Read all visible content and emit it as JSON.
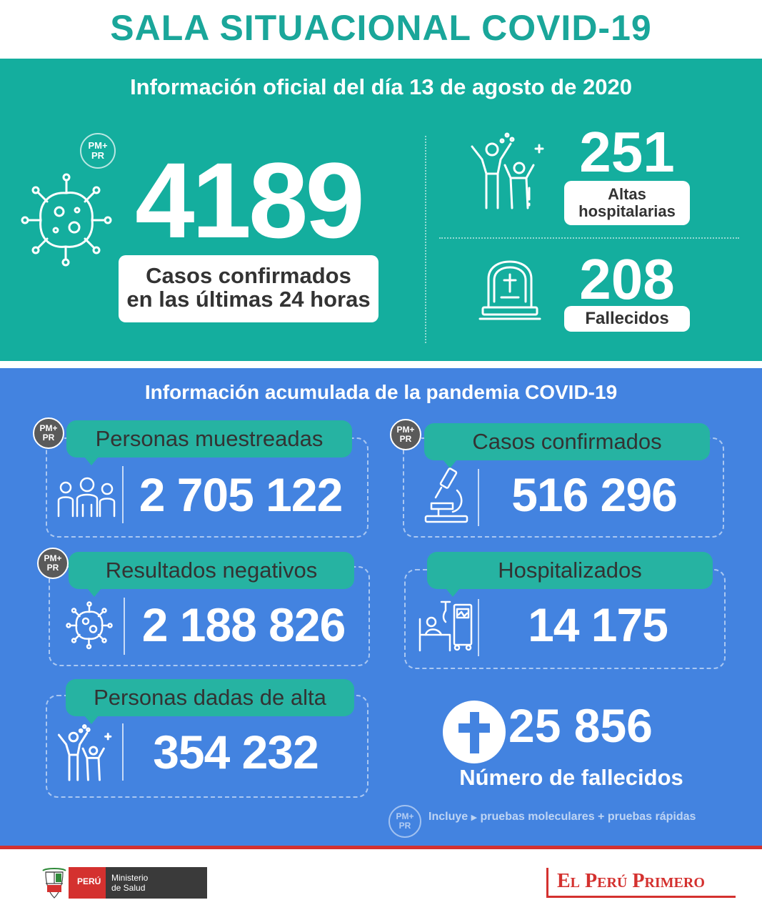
{
  "colors": {
    "teal": "#14ae9e",
    "blue": "#4383e0",
    "title": "#1aa69a",
    "dark_text": "#333333",
    "pill": "#26b3a2",
    "red": "#d4312f",
    "badge_dark": "#5a5a5a"
  },
  "title": "SALA SITUACIONAL COVID-19",
  "daily": {
    "heading": "Información oficial del día 13 de agosto de 2020",
    "badge": [
      "PM+",
      "PR"
    ],
    "cases_number": "4189",
    "cases_label_line1": "Casos confirmados",
    "cases_label_line2": "en las últimas 24 horas",
    "discharges_number": "251",
    "discharges_label_line1": "Altas",
    "discharges_label_line2": "hospitalarias",
    "deaths_number": "208",
    "deaths_label": "Fallecidos",
    "icons": [
      "virus-icon",
      "celebrating-people-icon",
      "gravestone-icon"
    ]
  },
  "cumulative": {
    "heading": "Información acumulada de la pandemia COVID-19",
    "cards": [
      {
        "label": "Personas muestreadas",
        "value": "2 705 122",
        "icon": "people-group-icon",
        "badge": true
      },
      {
        "label": "Casos confirmados",
        "value": "516 296",
        "icon": "microscope-icon",
        "badge": true
      },
      {
        "label": "Resultados negativos",
        "value": "2 188 826",
        "icon": "virus-icon",
        "badge": true
      },
      {
        "label": "Hospitalizados",
        "value": "14 175",
        "icon": "hospital-bed-icon",
        "badge": false
      },
      {
        "label": "Personas dadas de alta",
        "value": "354 232",
        "icon": "celebrating-people-icon",
        "badge": false
      }
    ],
    "deaths_number": "25 856",
    "deaths_label": "Número de fallecidos",
    "footnote_badge": [
      "PM+",
      "PR"
    ],
    "footnote_prefix": "Incluye",
    "footnote_text": "pruebas moleculares +  pruebas rápidas"
  },
  "footer": {
    "peru_label": "PERÚ",
    "ministry_line1": "Ministerio",
    "ministry_line2": "de Salud",
    "brand": "El Perú Primero"
  }
}
